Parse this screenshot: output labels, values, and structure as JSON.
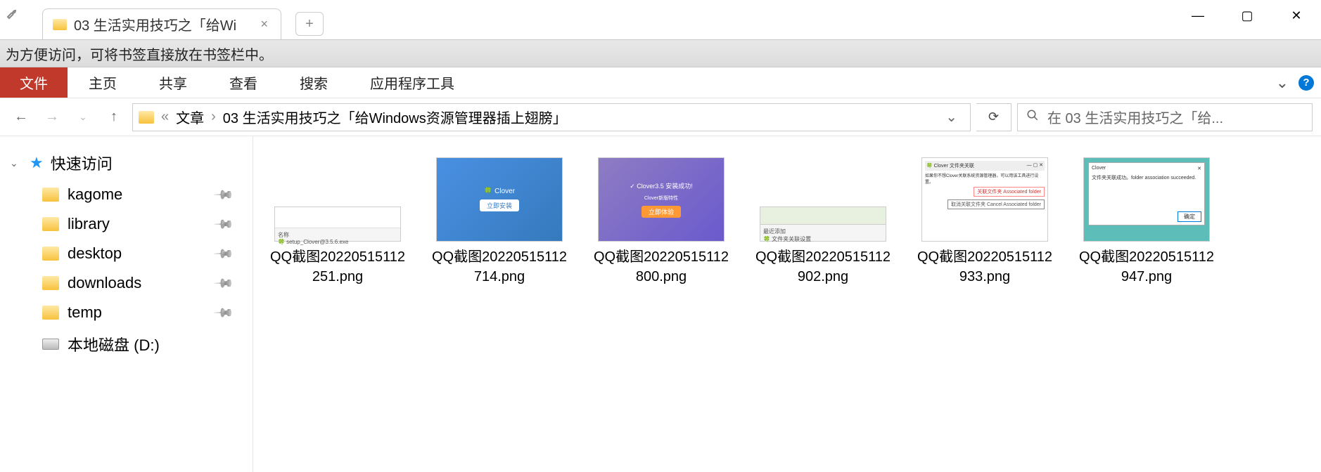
{
  "titlebar": {
    "tab_title": "03 生活实用技巧之「给Wi",
    "window_controls": {
      "min": "—",
      "max": "▢",
      "close": "✕"
    }
  },
  "bookmark_bar": {
    "hint": "为方便访问，可将书签直接放在书签栏中。"
  },
  "ribbon": {
    "file": "文件",
    "items": [
      "主页",
      "共享",
      "查看",
      "搜索",
      "应用程序工具"
    ],
    "chevron": "⌄"
  },
  "address": {
    "back": "←",
    "forward": "→",
    "recent": "⌄",
    "up": "↑",
    "sep_prefix": "«",
    "crumbs": [
      "文章",
      "03 生活实用技巧之「给Windows资源管理器插上翅膀」"
    ],
    "sep": "›",
    "dropdown": "⌄",
    "refresh": "⟳",
    "search_placeholder": "在 03 生活实用技巧之「给..."
  },
  "sidebar": {
    "quick_access": {
      "chevron": "⌄",
      "label": "快速访问"
    },
    "items": [
      {
        "label": "kagome",
        "type": "folder",
        "pinned": true
      },
      {
        "label": "library",
        "type": "folder",
        "pinned": true
      },
      {
        "label": "desktop",
        "type": "folder",
        "pinned": true
      },
      {
        "label": "downloads",
        "type": "folder",
        "pinned": true
      },
      {
        "label": "temp",
        "type": "folder",
        "pinned": true
      },
      {
        "label": "本地磁盘 (D:)",
        "type": "disk",
        "pinned": false
      }
    ]
  },
  "files": [
    {
      "name": "QQ截图20220515112251.png",
      "thumb_type": "t1",
      "thumb_text": "setup_Clover@3.5.6.exe",
      "thumb_label": "名称"
    },
    {
      "name": "QQ截图20220515112714.png",
      "thumb_type": "t2",
      "thumb_text": "Clover",
      "thumb_btn": "立即安装"
    },
    {
      "name": "QQ截图20220515112800.png",
      "thumb_type": "t3",
      "thumb_text": "Clover3.5 安装成功!",
      "thumb_btn": "立即体验"
    },
    {
      "name": "QQ截图20220515112902.png",
      "thumb_type": "t4",
      "thumb_text": "文件夹关联设置",
      "thumb_label": "最近添加"
    },
    {
      "name": "QQ截图20220515112933.png",
      "thumb_type": "t5",
      "thumb_title": "Clover 文件夹关联",
      "thumb_text": "如果你不想Clover关联系统资源管理器，可以用该工具进行设置。",
      "thumb_btn1": "关联文件夹 Associated folder",
      "thumb_btn2": "取消关联文件夹 Cancel Associated folder"
    },
    {
      "name": "QQ截图20220515112947.png",
      "thumb_type": "t6",
      "thumb_title": "Clover",
      "thumb_text": "文件夹关联成功。folder association succeeded.",
      "thumb_btn": "确定"
    }
  ]
}
